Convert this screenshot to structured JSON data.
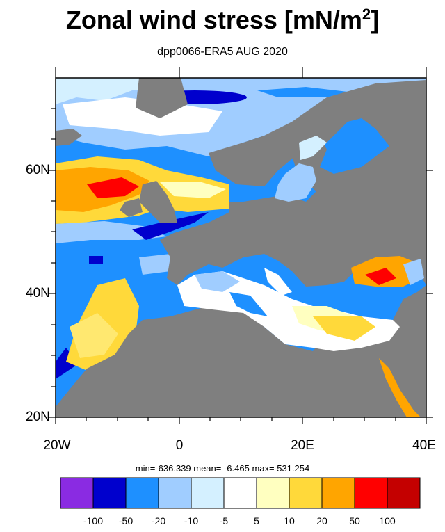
{
  "title": "Zonal wind stress [mN/m",
  "title_sup": "2",
  "title_end": "]",
  "subtitle": "dpp0066-ERA5  AUG 2020",
  "axes": {
    "y_labels": [
      "60N",
      "40N",
      "20N"
    ],
    "x_labels": [
      "20W",
      "0",
      "20E",
      "40E"
    ]
  },
  "stats": "min=-636.339  mean=  -6.465  max= 531.254",
  "colorbar": {
    "labels": [
      "-100",
      "-50",
      "-20",
      "-10",
      "-5",
      "5",
      "10",
      "20",
      "50",
      "100"
    ],
    "colors": [
      "#8a2be2",
      "#0000cd",
      "#1e90ff",
      "#a0cdff",
      "#d4f0ff",
      "#ffffff",
      "#ffffc0",
      "#ffd93a",
      "#ffa500",
      "#ff0000",
      "#c40000"
    ]
  },
  "colors": {
    "land": "#7f7f7f",
    "ocean_negative": "#1e90ff"
  }
}
